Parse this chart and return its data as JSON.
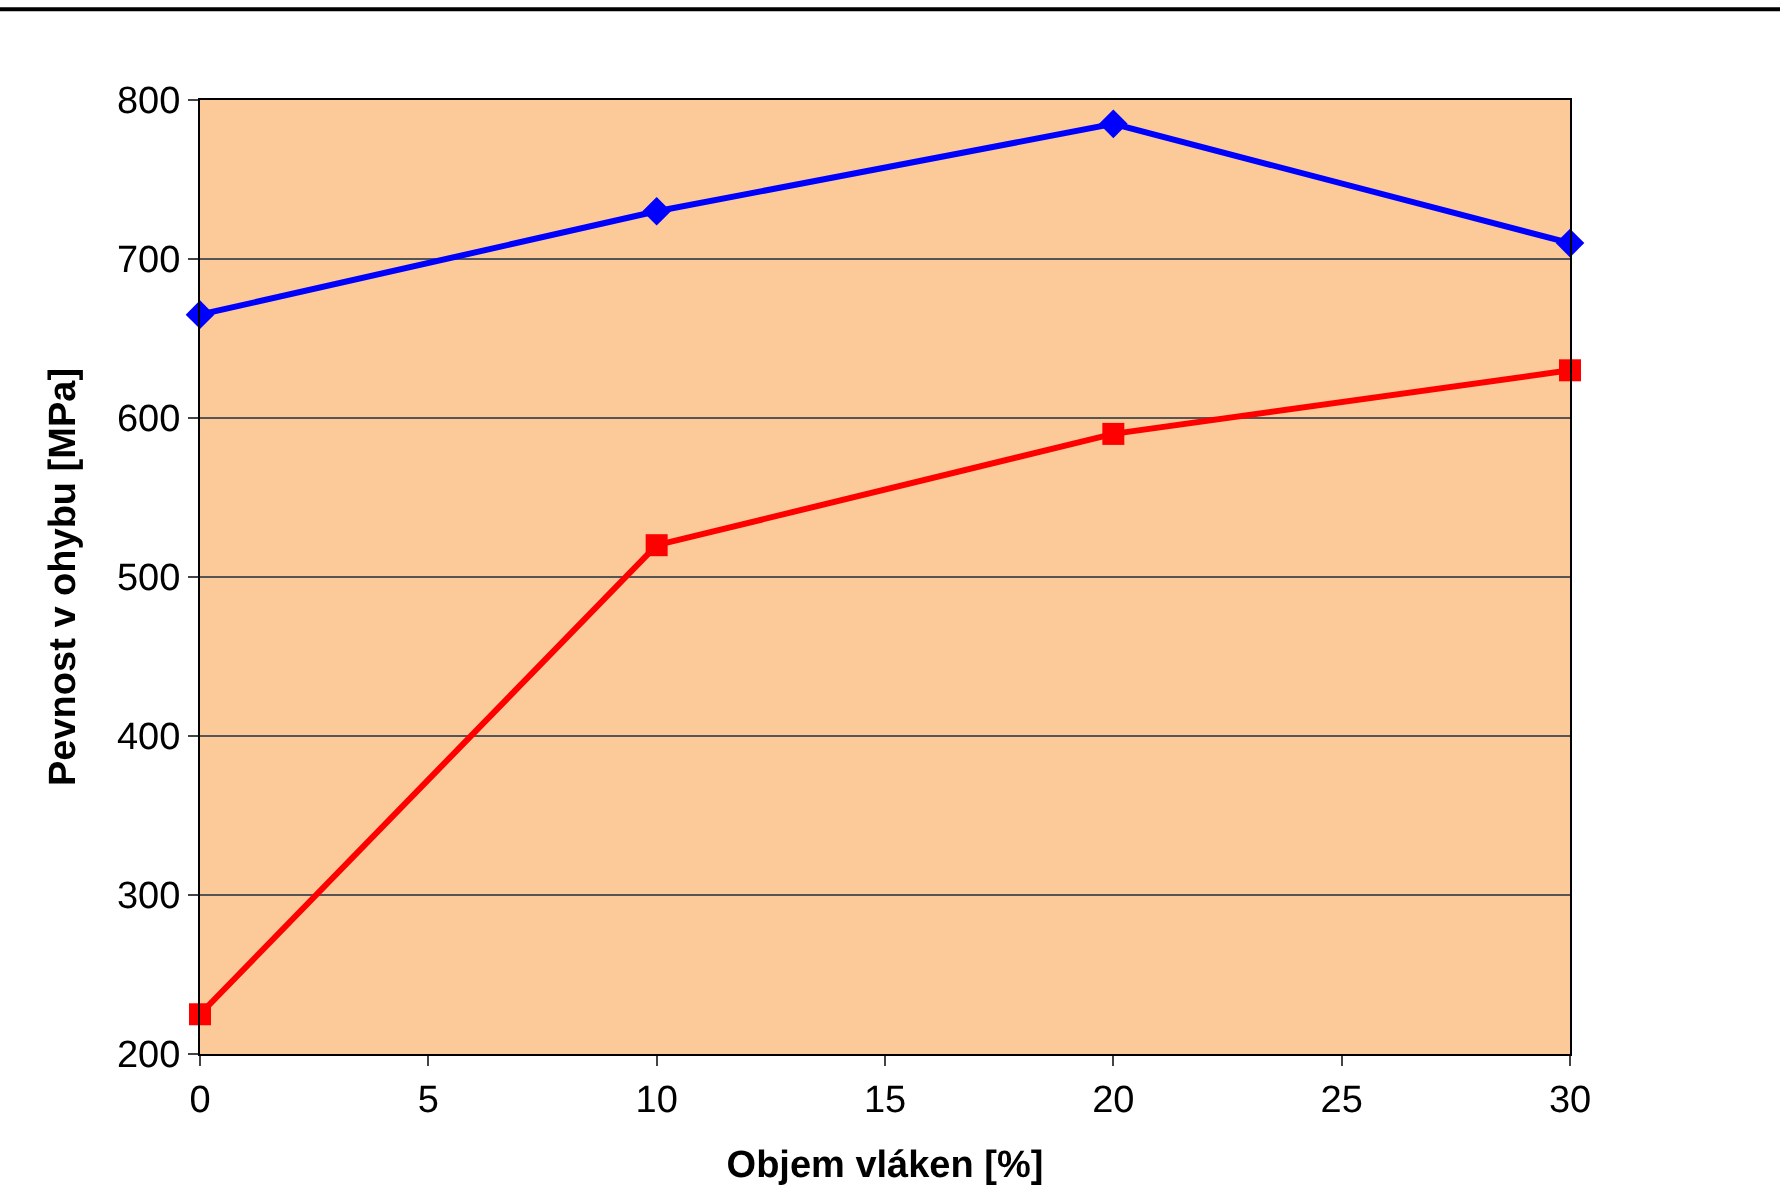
{
  "chart_data": {
    "type": "line",
    "xlabel": "Objem vláken [%]",
    "ylabel": "Pevnost v ohybu [MPa]",
    "x": [
      0,
      10,
      20,
      30
    ],
    "series": [
      {
        "color": "#0000ff",
        "marker": "diamond",
        "values": [
          665,
          730,
          785,
          710
        ]
      },
      {
        "color": "#ff0000",
        "marker": "square",
        "values": [
          225,
          520,
          590,
          630
        ]
      }
    ],
    "xlim": [
      0,
      30
    ],
    "xticks": [
      0,
      5,
      10,
      15,
      20,
      25,
      30
    ],
    "ylim": [
      200,
      800
    ],
    "yticks": [
      200,
      300,
      400,
      500,
      600,
      700,
      800
    ],
    "grid": "y",
    "legend": false,
    "line_style": "solid"
  }
}
